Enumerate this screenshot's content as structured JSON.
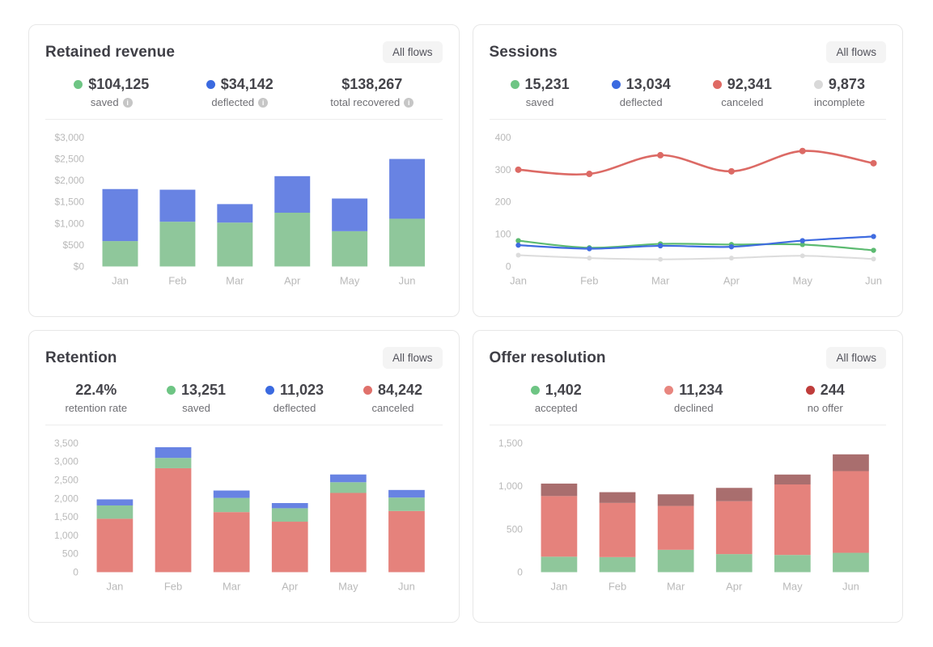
{
  "cards": [
    {
      "title": "Retained revenue",
      "filter_label": "All flows",
      "stats": [
        {
          "dot": "#6ec584",
          "value": "$104,125",
          "label": "saved",
          "info": true
        },
        {
          "dot": "#3b6ae0",
          "value": "$34,142",
          "label": "deflected",
          "info": true
        },
        {
          "value": "$138,267",
          "label": "total recovered",
          "info": true
        }
      ]
    },
    {
      "title": "Sessions",
      "filter_label": "All flows",
      "stats": [
        {
          "dot": "#6ec584",
          "value": "15,231",
          "label": "saved"
        },
        {
          "dot": "#3b6ae0",
          "value": "13,034",
          "label": "deflected"
        },
        {
          "dot": "#df6a64",
          "value": "92,341",
          "label": "canceled"
        },
        {
          "dot": "#d9d9d9",
          "value": "9,873",
          "label": "incomplete"
        }
      ]
    },
    {
      "title": "Retention",
      "filter_label": "All flows",
      "stats": [
        {
          "value": "22.4%",
          "label": "retention rate"
        },
        {
          "dot": "#6ec584",
          "value": "13,251",
          "label": "saved"
        },
        {
          "dot": "#3b6ae0",
          "value": "11,023",
          "label": "deflected"
        },
        {
          "dot": "#e0716b",
          "value": "84,242",
          "label": "canceled"
        }
      ]
    },
    {
      "title": "Offer resolution",
      "filter_label": "All flows",
      "stats": [
        {
          "dot": "#6ec584",
          "value": "1,402",
          "label": "accepted"
        },
        {
          "dot": "#e8867f",
          "value": "11,234",
          "label": "declined"
        },
        {
          "dot": "#bf3d3b",
          "value": "244",
          "label": "no offer"
        }
      ]
    }
  ],
  "chart_data": [
    {
      "type": "bar",
      "stacked": true,
      "title": "Retained revenue",
      "categories": [
        "Jan",
        "Feb",
        "Mar",
        "Apr",
        "May",
        "Jun"
      ],
      "series": [
        {
          "name": "saved",
          "color": "#8fc79b",
          "values": [
            590,
            1040,
            1020,
            1250,
            820,
            1110
          ]
        },
        {
          "name": "deflected",
          "color": "#6883e3",
          "values": [
            1210,
            745,
            430,
            850,
            760,
            1390
          ]
        }
      ],
      "ylim": [
        0,
        3000
      ],
      "ytick_step": 500,
      "tick_prefix": "$",
      "grid": false,
      "legend": "none"
    },
    {
      "type": "line",
      "title": "Sessions",
      "categories": [
        "Jan",
        "Feb",
        "Mar",
        "Apr",
        "May",
        "Jun"
      ],
      "series": [
        {
          "name": "incomplete",
          "color": "#dcdcdc",
          "values": [
            35,
            26,
            22,
            26,
            33,
            23
          ],
          "width": 2,
          "marker": 3
        },
        {
          "name": "saved",
          "color": "#5cba71",
          "values": [
            80,
            58,
            70,
            68,
            68,
            50
          ],
          "width": 2.2,
          "marker": 3.2
        },
        {
          "name": "deflected",
          "color": "#3f6be0",
          "values": [
            66,
            55,
            64,
            61,
            80,
            93
          ],
          "width": 2.2,
          "marker": 3.2
        },
        {
          "name": "canceled",
          "color": "#dc6a65",
          "values": [
            300,
            287,
            345,
            295,
            358,
            320
          ],
          "width": 2.6,
          "marker": 4
        }
      ],
      "ylim": [
        0,
        400
      ],
      "ytick_step": 100,
      "grid": false,
      "legend": "none"
    },
    {
      "type": "bar",
      "stacked": true,
      "title": "Retention",
      "categories": [
        "Jan",
        "Feb",
        "Mar",
        "Apr",
        "May",
        "Jun"
      ],
      "series": [
        {
          "name": "canceled",
          "color": "#e5827c",
          "values": [
            1450,
            2820,
            1630,
            1370,
            2150,
            1660
          ]
        },
        {
          "name": "saved",
          "color": "#8fc79b",
          "values": [
            360,
            280,
            385,
            365,
            290,
            365
          ]
        },
        {
          "name": "deflected",
          "color": "#6883e3",
          "values": [
            165,
            290,
            200,
            140,
            210,
            205
          ]
        }
      ],
      "ylim": [
        0,
        3500
      ],
      "ytick_step": 500,
      "grid": false,
      "legend": "none"
    },
    {
      "type": "bar",
      "stacked": true,
      "title": "Offer resolution",
      "categories": [
        "Jan",
        "Feb",
        "Mar",
        "Apr",
        "May",
        "Jun"
      ],
      "series": [
        {
          "name": "accepted",
          "color": "#8fc79b",
          "values": [
            180,
            175,
            260,
            210,
            200,
            225
          ]
        },
        {
          "name": "declined",
          "color": "#e5827c",
          "values": [
            705,
            630,
            510,
            615,
            820,
            950
          ]
        },
        {
          "name": "no offer",
          "color": "#a96e6e",
          "values": [
            145,
            125,
            135,
            155,
            115,
            195
          ]
        }
      ],
      "ylim": [
        0,
        1500
      ],
      "ytick_step": 500,
      "grid": false,
      "legend": "none"
    }
  ]
}
